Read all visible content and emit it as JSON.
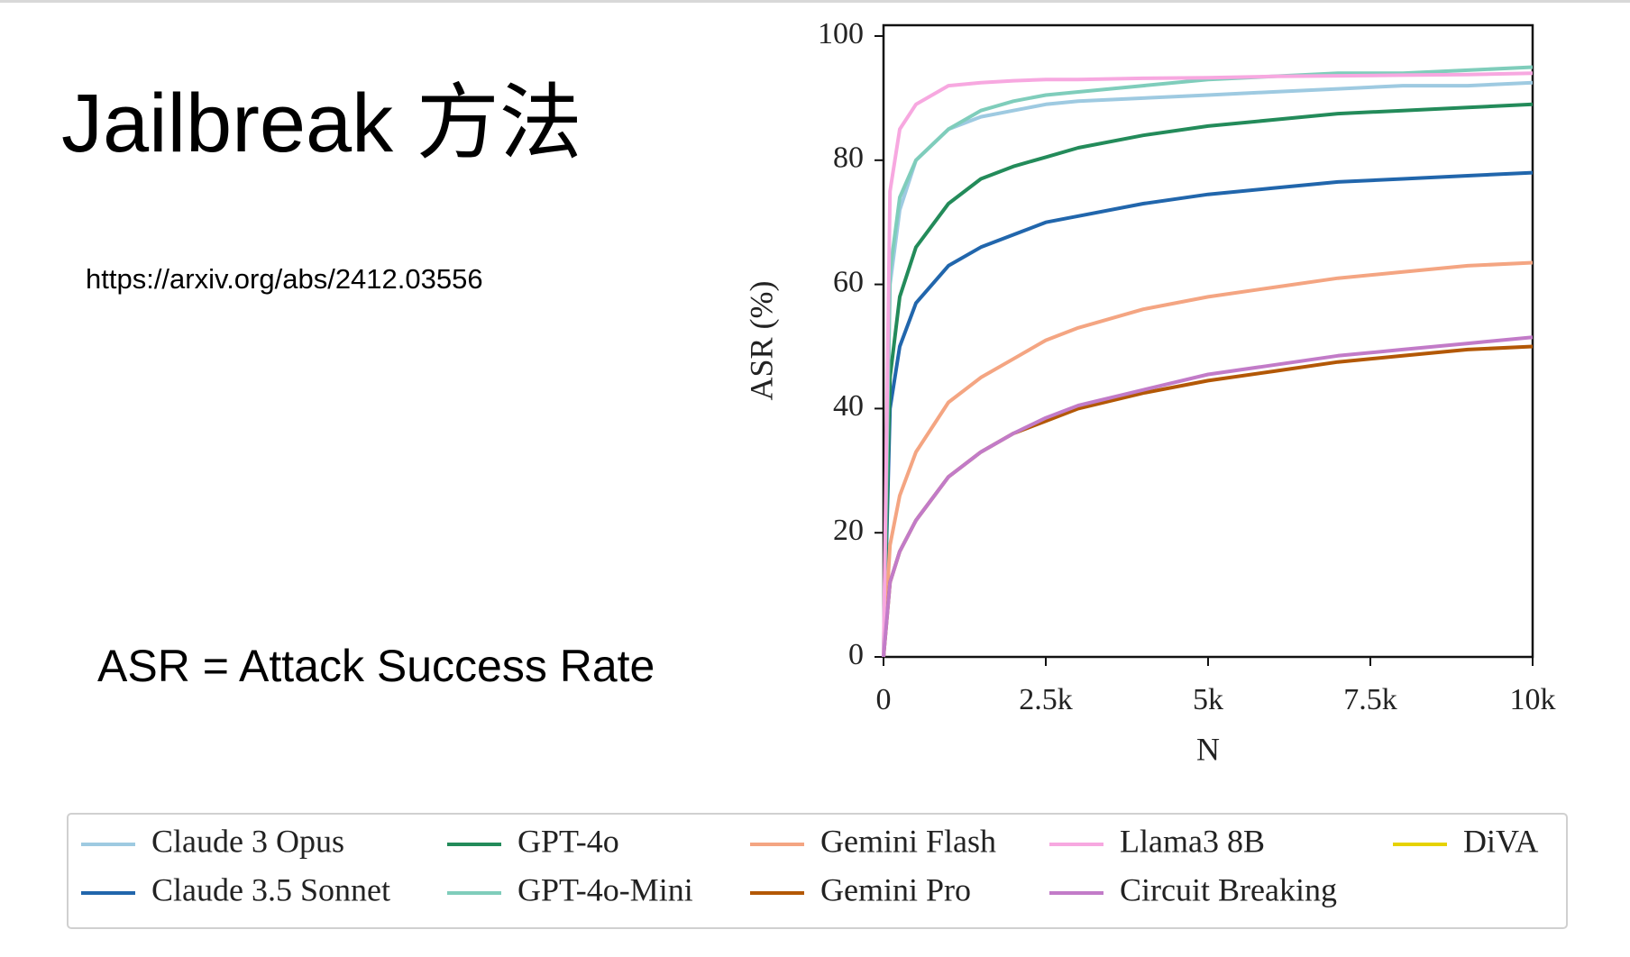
{
  "title": "Jailbreak 方法",
  "url": "https://arxiv.org/abs/2412.03556",
  "note": "ASR = Attack Success Rate",
  "chart_data": {
    "type": "line",
    "xlabel": "N",
    "ylabel": "ASR (%)",
    "x": [
      0,
      100,
      250,
      500,
      1000,
      1500,
      2000,
      2500,
      3000,
      4000,
      5000,
      6000,
      7000,
      8000,
      9000,
      10000
    ],
    "xlim": [
      0,
      10000
    ],
    "ylim": [
      0,
      100
    ],
    "xticks": [
      0,
      {
        "value": 2500,
        "label": "2.5k"
      },
      {
        "value": 5000,
        "label": "5k"
      },
      {
        "value": 7500,
        "label": "7.5k"
      },
      {
        "value": 10000,
        "label": "10k"
      }
    ],
    "yticks": [
      0,
      20,
      40,
      60,
      80,
      100
    ],
    "series": [
      {
        "name": "Claude 3 Opus",
        "color": "#9ecae1",
        "values": [
          0,
          60,
          72,
          80,
          85,
          87,
          88,
          89,
          89.5,
          90,
          90.5,
          91,
          91.5,
          92,
          92,
          92.5
        ]
      },
      {
        "name": "Claude 3.5 Sonnet",
        "color": "#2166ac",
        "values": [
          0,
          40,
          50,
          57,
          63,
          66,
          68,
          70,
          71,
          73,
          74.5,
          75.5,
          76.5,
          77,
          77.5,
          78
        ]
      },
      {
        "name": "GPT-4o",
        "color": "#238b5a",
        "values": [
          0,
          45,
          58,
          66,
          73,
          77,
          79,
          80.5,
          82,
          84,
          85.5,
          86.5,
          87.5,
          88,
          88.5,
          89
        ]
      },
      {
        "name": "GPT-4o-Mini",
        "color": "#7fcdbb",
        "values": [
          0,
          62,
          74,
          80,
          85,
          88,
          89.5,
          90.5,
          91,
          92,
          93,
          93.5,
          94,
          94,
          94.5,
          95
        ]
      },
      {
        "name": "Gemini Flash",
        "color": "#f4a582",
        "values": [
          0,
          18,
          26,
          33,
          41,
          45,
          48,
          51,
          53,
          56,
          58,
          59.5,
          61,
          62,
          63,
          63.5
        ]
      },
      {
        "name": "Gemini Pro",
        "color": "#b35806",
        "values": [
          0,
          12,
          17,
          22,
          29,
          33,
          36,
          38,
          40,
          42.5,
          44.5,
          46,
          47.5,
          48.5,
          49.5,
          50
        ]
      },
      {
        "name": "Llama3 8B",
        "color": "#f7a8e0",
        "values": [
          0,
          75,
          85,
          89,
          92,
          92.5,
          92.8,
          93,
          93,
          93.2,
          93.3,
          93.5,
          93.6,
          93.7,
          93.8,
          94
        ]
      },
      {
        "name": "Circuit Breaking",
        "color": "#c27bc8",
        "values": [
          0,
          12,
          17,
          22,
          29,
          33,
          36,
          38.5,
          40.5,
          43,
          45.5,
          47,
          48.5,
          49.5,
          50.5,
          51.5
        ]
      },
      {
        "name": "DiVA",
        "color": "#e6d200",
        "values": [
          null,
          null,
          null,
          null,
          null,
          null,
          null,
          null,
          null,
          null,
          null,
          null,
          null,
          null,
          null,
          null
        ]
      }
    ]
  }
}
